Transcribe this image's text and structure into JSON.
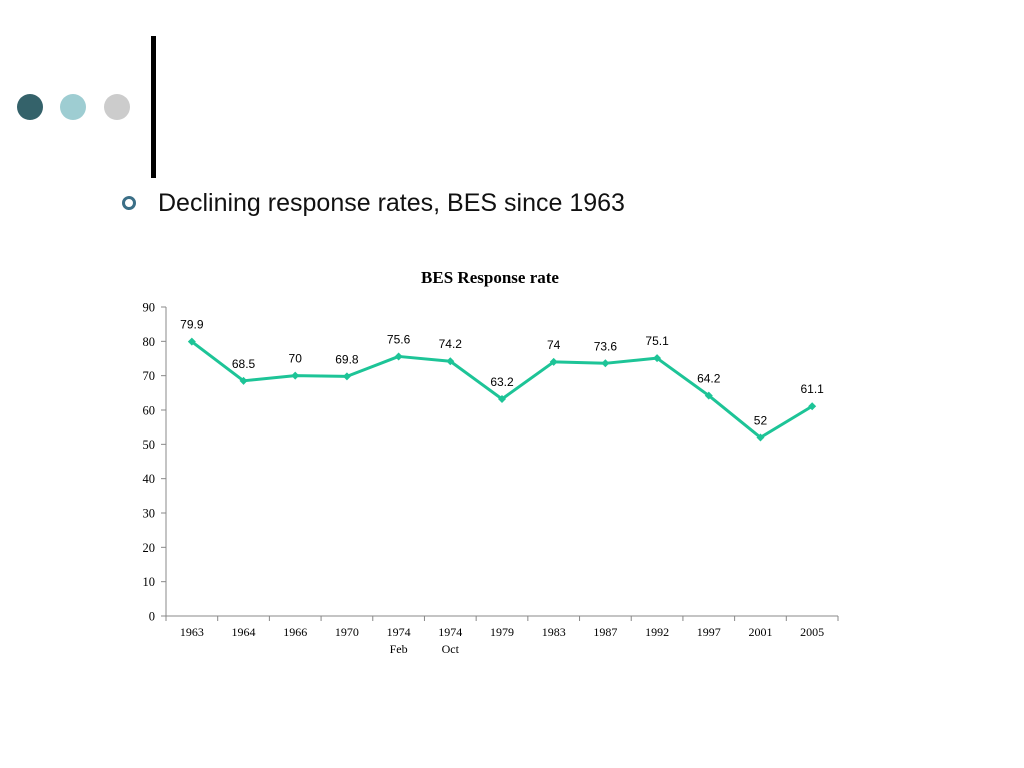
{
  "decor": {
    "dots": [
      "#34626a",
      "#9ecdd2",
      "#cccccc"
    ]
  },
  "slide": {
    "bullet_text": "Declining response rates, BES since 1963"
  },
  "chart_data": {
    "type": "line",
    "title": "BES Response rate",
    "xlabel": "",
    "ylabel": "",
    "ylim": [
      0,
      90
    ],
    "yticks": [
      0,
      10,
      20,
      30,
      40,
      50,
      60,
      70,
      80,
      90
    ],
    "categories": [
      [
        "1963"
      ],
      [
        "1964"
      ],
      [
        "1966"
      ],
      [
        "1970"
      ],
      [
        "1974",
        "Feb"
      ],
      [
        "1974",
        "Oct"
      ],
      [
        "1979"
      ],
      [
        "1983"
      ],
      [
        "1987"
      ],
      [
        "1992"
      ],
      [
        "1997"
      ],
      [
        "2001"
      ],
      [
        "2005"
      ]
    ],
    "series": [
      {
        "name": "",
        "color": "#1dc497",
        "values": [
          79.9,
          68.5,
          70,
          69.8,
          75.6,
          74.2,
          63.2,
          74,
          73.6,
          75.1,
          64.2,
          52,
          61.1
        ]
      }
    ],
    "grid": false,
    "legend": "none"
  }
}
